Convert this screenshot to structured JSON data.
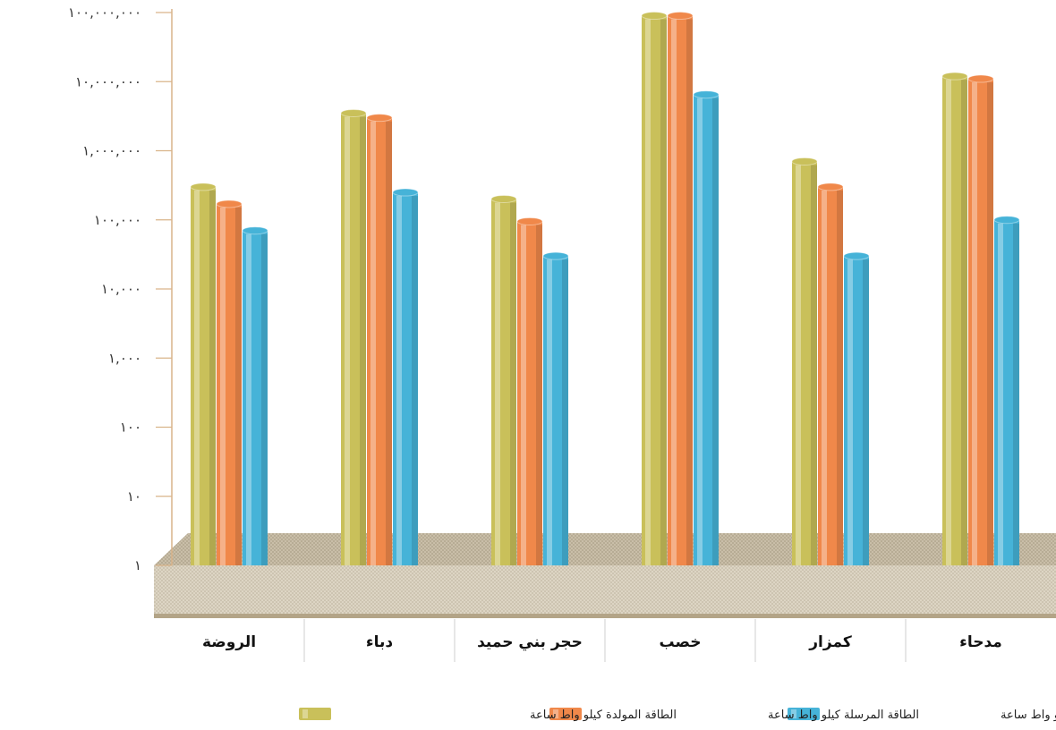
{
  "chart_data": {
    "type": "bar",
    "orientation": "vertical",
    "y_scale": "log",
    "ylim": [
      1,
      100000000
    ],
    "y_ticks": [
      {
        "value": 100000000,
        "label": "١٠٠,٠٠٠,٠٠٠"
      },
      {
        "value": 10000000,
        "label": "١٠,٠٠٠,٠٠٠"
      },
      {
        "value": 1000000,
        "label": "١,٠٠٠,٠٠٠"
      },
      {
        "value": 100000,
        "label": "١٠٠,٠٠٠"
      },
      {
        "value": 10000,
        "label": "١٠,٠٠٠"
      },
      {
        "value": 1000,
        "label": "١,٠٠٠"
      },
      {
        "value": 100,
        "label": "١٠٠"
      },
      {
        "value": 10,
        "label": "١٠"
      },
      {
        "value": 1,
        "label": "١"
      }
    ],
    "categories": [
      "الروضة",
      "دباء",
      "حجر بني حميد",
      "خصب",
      "كمزار",
      "مدحاء"
    ],
    "series": [
      {
        "name": "الطاقة المولدة كيلو واط ساعة",
        "color": "#c9c05a",
        "values": [
          300000,
          3500000,
          200000,
          90000000,
          700000,
          12000000
        ]
      },
      {
        "name": "الطاقة المرسلة كيلو واط ساعة",
        "color": "#f0884a",
        "values": [
          170000,
          3000000,
          95000,
          90000000,
          300000,
          11000000
        ]
      },
      {
        "name": "الطاقة المستهلكة كيلو واط ساعة",
        "color": "#46b3d8",
        "values": [
          70000,
          250000,
          30000,
          6500000,
          30000,
          100000
        ]
      }
    ],
    "legend_position": "bottom",
    "grid": false,
    "title": "",
    "xlabel": "",
    "ylabel": ""
  }
}
